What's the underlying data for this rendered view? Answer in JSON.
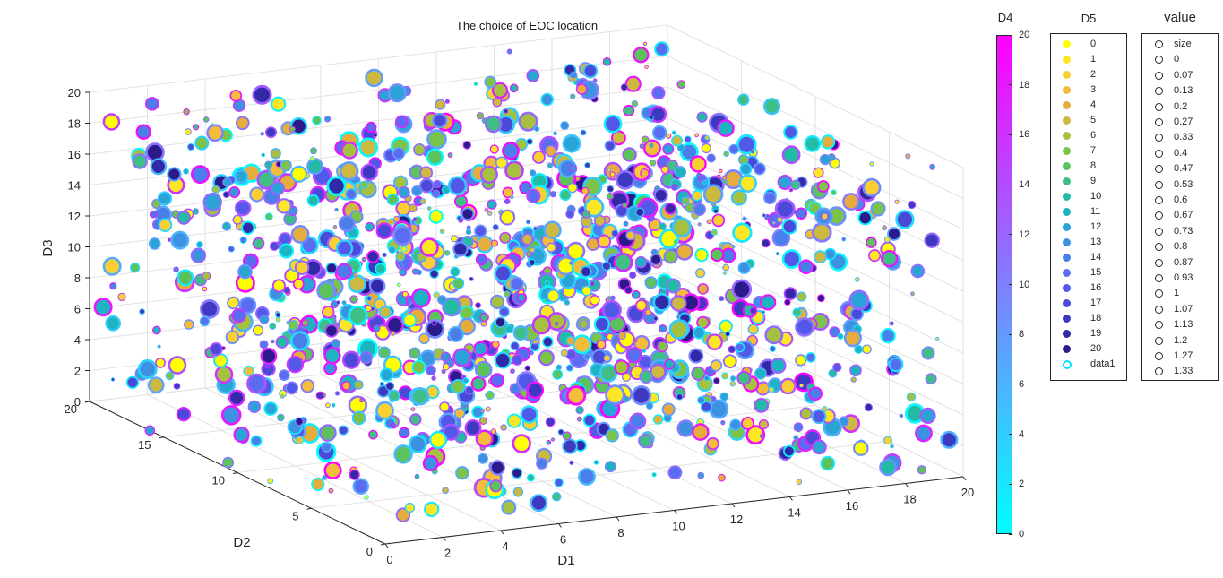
{
  "chart_data": {
    "type": "scatter",
    "title": "The choice of EOC location",
    "xlabel": "D1",
    "ylabel": "D2",
    "zlabel": "D3",
    "xlim": [
      0,
      20
    ],
    "ylim": [
      0,
      20
    ],
    "zlim": [
      0,
      20
    ],
    "xticks": [
      "0",
      "2",
      "4",
      "6",
      "8",
      "10",
      "12",
      "14",
      "16",
      "18",
      "20"
    ],
    "yticks": [
      "0",
      "5",
      "10",
      "15",
      "20"
    ],
    "zticks": [
      "0",
      "2",
      "4",
      "6",
      "8",
      "10",
      "12",
      "14",
      "16",
      "18",
      "20"
    ],
    "grid": true,
    "colorbar": {
      "label": "D4",
      "range": [
        0,
        20
      ],
      "ticks": [
        "0",
        "2",
        "4",
        "6",
        "8",
        "10",
        "12",
        "14",
        "16",
        "18",
        "20"
      ],
      "colors": [
        "#00ffff",
        "#ff00ff"
      ]
    },
    "legend_d5": {
      "title": "D5",
      "placement": "right",
      "entries": [
        "0",
        "1",
        "2",
        "3",
        "4",
        "5",
        "6",
        "7",
        "8",
        "9",
        "10",
        "11",
        "12",
        "13",
        "14",
        "15",
        "16",
        "17",
        "18",
        "19",
        "20",
        "data1"
      ],
      "colors": [
        "#ffff00",
        "#fde725",
        "#f9cf33",
        "#f3bd3a",
        "#e6ad3d",
        "#cdb840",
        "#a6c040",
        "#7cc34a",
        "#5cc25c",
        "#3fbe85",
        "#22bba6",
        "#1db4c2",
        "#2aa3d6",
        "#3c92e0",
        "#4a7ee8",
        "#5a6cf0",
        "#5258e8",
        "#4a49d8",
        "#3d39c0",
        "#3229a8",
        "#2b1a8a",
        "#00e5ff"
      ]
    },
    "legend_value": {
      "title": "value",
      "placement": "far-right",
      "entries": [
        "size",
        "0",
        "0.07",
        "0.13",
        "0.2",
        "0.27",
        "0.33",
        "0.4",
        "0.47",
        "0.53",
        "0.6",
        "0.67",
        "0.73",
        "0.8",
        "0.87",
        "0.93",
        "1",
        "1.07",
        "1.13",
        "1.2",
        "1.27",
        "1.33"
      ]
    },
    "point_count": 1400
  }
}
